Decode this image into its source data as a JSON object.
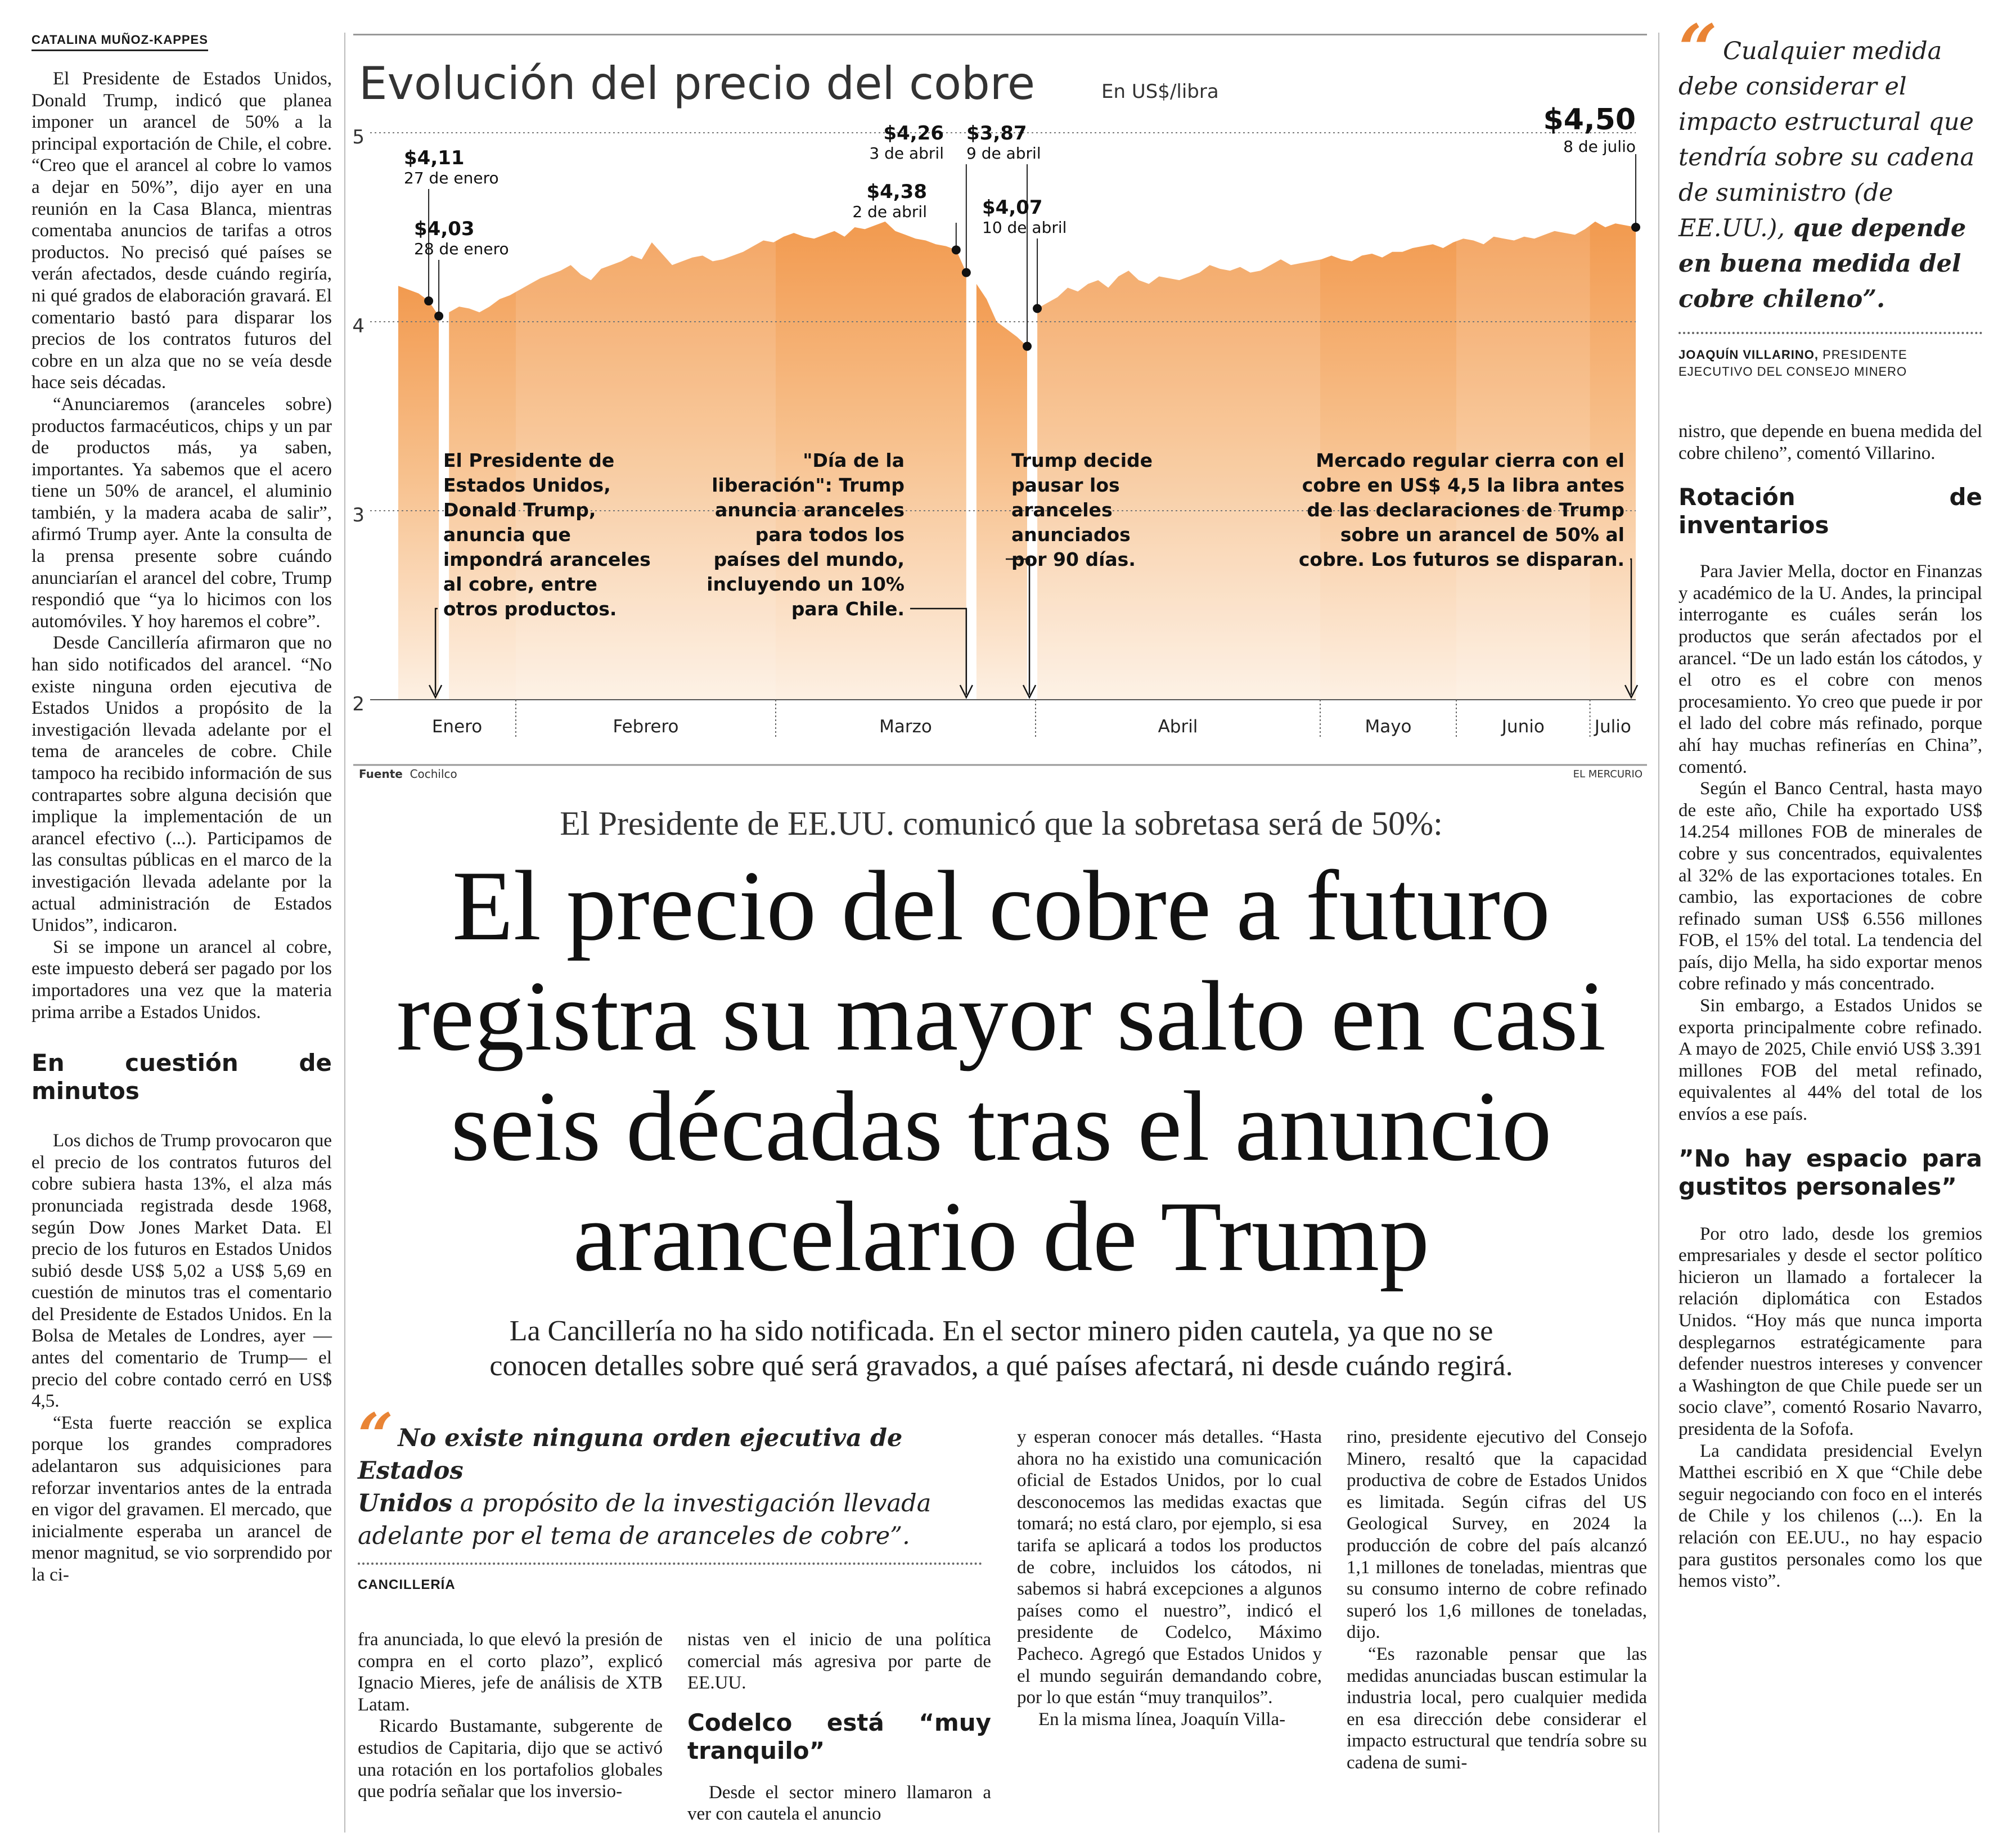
{
  "left": {
    "byline": "CATALINA MUÑOZ-KAPPES",
    "paragraphs": [
      "El Presidente de Estados Unidos, Donald Trump, indicó que planea imponer un arancel de 50% a la principal exportación de Chile, el cobre. “Creo que el arancel al cobre lo vamos a dejar en 50%”, dijo ayer en una reunión en la Casa Blanca, mientras comentaba anuncios de tarifas a otros productos. No precisó qué países se verán afectados, desde cuándo regiría, ni qué grados de elaboración gravará. El comentario bastó para disparar los precios de los contratos futuros del cobre en un alza que no se veía desde hace seis décadas.",
      "“Anunciaremos (aranceles sobre) productos farmacéuticos, chips y un par de productos más, ya saben, importantes. Ya sabemos que el acero tiene un 50% de arancel, el aluminio también, y la madera acaba de salir”, afirmó Trump ayer. Ante la consulta de la prensa presente sobre cuándo anunciarían el arancel del cobre, Trump respondió que “ya lo hicimos con los automóviles. Y hoy haremos el cobre”.",
      "Desde Cancillería afirmaron que no han sido notificados del arancel. “No existe ninguna orden ejecutiva de Estados Unidos a propósito de la investigación llevada adelante por el tema de aranceles de cobre. Chile tampoco ha recibido información de sus contrapartes sobre alguna decisión que implique la implementación de un arancel efectivo (...). Participamos de las consultas públicas en el marco de la investigación llevada adelante por la actual administración de Estados Unidos”, indicaron.",
      "Si se impone un arancel al cobre, este impuesto deberá ser pagado por los importadores una vez que la materia prima arribe a Estados Unidos."
    ],
    "subhead": "En cuestión de minutos",
    "paragraphs2": [
      "Los dichos de Trump provocaron que el precio de los contratos futuros del cobre subiera hasta 13%, el alza más pronunciada registrada desde 1968, según Dow Jones Market Data. El precio de los futuros en Estados Unidos subió desde US$ 5,02 a US$ 5,69 en cuestión de minutos tras el comentario del Presidente de Estados Unidos. En la Bolsa de Metales de Londres, ayer —antes del comentario de Trump— el precio del cobre contado cerró en US$ 4,5.",
      "“Esta fuerte reacción se explica porque los grandes compradores adelantaron sus adquisiciones para reforzar inventarios antes de la entrada en vigor del gravamen. El mercado, que inicialmente esperaba un arancel de menor magnitud, se vio sorprendido por la ci-"
    ]
  },
  "chart_data": {
    "type": "area",
    "title": "Evolución del precio del cobre",
    "unit_label": "En US$/libra",
    "ylim": [
      2,
      5
    ],
    "yticks": [
      "5",
      "4",
      "3",
      "2"
    ],
    "months": [
      "Enero",
      "Febrero",
      "Marzo",
      "Abril",
      "Mayo",
      "Junio",
      "Julio"
    ],
    "series": [
      {
        "values": [
          4.19,
          4.17,
          4.15,
          4.11,
          4.03,
          4.05,
          4.08,
          4.07,
          4.05,
          4.08,
          4.12,
          4.14,
          4.17,
          4.2,
          4.23,
          4.25,
          4.27,
          4.3,
          4.25,
          4.22,
          4.28,
          4.3,
          4.32,
          4.35,
          4.33,
          4.42,
          4.36,
          4.3,
          4.32,
          4.34,
          4.35,
          4.32,
          4.33,
          4.35,
          4.37,
          4.4,
          4.43,
          4.42,
          4.45,
          4.47,
          4.45,
          4.44,
          4.46,
          4.48,
          4.45,
          4.5,
          4.49,
          4.51,
          4.53,
          4.48,
          4.46,
          4.44,
          4.43,
          4.41,
          4.4,
          4.38,
          4.26,
          4.2,
          4.12,
          4.0,
          3.96,
          3.92,
          3.87,
          4.07,
          4.1,
          4.13,
          4.18,
          4.16,
          4.2,
          4.22,
          4.18,
          4.24,
          4.27,
          4.22,
          4.2,
          4.24,
          4.23,
          4.22,
          4.24,
          4.26,
          4.3,
          4.28,
          4.27,
          4.29,
          4.26,
          4.27,
          4.3,
          4.33,
          4.3,
          4.31,
          4.32,
          4.33,
          4.35,
          4.33,
          4.32,
          4.35,
          4.36,
          4.34,
          4.37,
          4.37,
          4.39,
          4.4,
          4.41,
          4.39,
          4.42,
          4.44,
          4.43,
          4.41,
          4.45,
          4.44,
          4.43,
          4.45,
          4.44,
          4.46,
          4.48,
          4.47,
          4.46,
          4.49,
          4.53,
          4.5,
          4.52,
          4.51,
          4.5
        ]
      }
    ],
    "annotations": [
      {
        "value": "$4,11",
        "date": "27 de enero"
      },
      {
        "value": "$4,03",
        "date": "28 de enero"
      },
      {
        "value": "$4,38",
        "date": "2 de abril"
      },
      {
        "value": "$4,26",
        "date": "3 de abril"
      },
      {
        "value": "$3,87",
        "date": "9 de abril"
      },
      {
        "value": "$4,07",
        "date": "10 de abril"
      },
      {
        "value": "$4,50",
        "date": "8 de julio"
      }
    ],
    "events": [
      [
        "El Presidente de",
        "Estados Unidos,",
        "Donald Trump,",
        "anuncia que",
        "impondrá aranceles",
        "al cobre, entre",
        "otros productos."
      ],
      [
        "\"Día de la",
        "liberación\": Trump",
        "anuncia aranceles",
        "para todos los",
        "países del mundo,",
        "incluyendo un 10%",
        "para Chile."
      ],
      [
        "Trump decide",
        "pausar los",
        "aranceles",
        "anunciados",
        "por 90 días."
      ],
      [
        "Mercado regular cierra con el",
        "cobre en US$ 4,5 la libra antes",
        "de las declaraciones de Trump",
        "sobre un arancel de 50% al",
        "cobre. Los futuros se disparan."
      ]
    ],
    "source_label": "Fuente",
    "source": "Cochilco",
    "credit": "EL MERCURIO"
  },
  "headline": {
    "kicker": "El Presidente de EE.UU. comunicó que la sobretasa será de 50%:",
    "lines": [
      "El precio del cobre a futuro",
      "registra su mayor salto en casi",
      "seis décadas tras el anuncio",
      "arancelario de Trump"
    ],
    "deck": [
      "La Cancillería no ha sido notificada. En el sector minero piden cautela, ya que no se",
      "conocen detalles sobre qué será gravados, a qué países afectará, ni desde cuándo regirá."
    ]
  },
  "quote_mid": {
    "lines": [
      {
        "bold": "No existe ninguna orden ejecutiva de Estados",
        "normal": ""
      },
      {
        "bold": "Unidos",
        "normal": " a propósito de la investigación llevada"
      },
      {
        "bold": "",
        "normal": "adelante por el tema de aranceles de cobre”."
      }
    ],
    "source": "CANCILLERÍA"
  },
  "col2": [
    "fra anunciada, lo que elevó la presión de compra en el corto plazo”, explicó Ignacio Mieres, jefe de análisis de XTB Latam.",
    "Ricardo Bustamante, subgerente de estudios de Capitaria, dijo que se activó una rotación en los portafolios globales que podría señalar que los inversio-"
  ],
  "col3": {
    "paragraphs": [
      "nistas ven el inicio de una política comercial más agresiva por parte de EE.UU."
    ],
    "subhead": "Codelco está “muy tranquilo”",
    "paragraphs2": [
      "Desde el sector minero llamaron a ver con cautela el anuncio"
    ]
  },
  "col4": [
    "y esperan conocer más detalles. “Hasta ahora no ha existido una comunicación oficial de Estados Unidos, por lo cual desconocemos las medidas exactas que tomará; no está claro, por ejemplo, si esa tarifa se aplicará a todos los productos de cobre, incluidos los cátodos, ni sabemos si habrá excepciones a algunos países como el nuestro”, indicó el presidente de Codelco, Máximo Pacheco. Agregó que Estados Unidos y el mundo seguirán demandando cobre, por lo que están “muy tranquilos”.",
    "En la misma línea, Joaquín Villa-"
  ],
  "col5": [
    "rino, presidente ejecutivo del Consejo Minero, resaltó que la capacidad productiva de cobre de Estados Unidos es limitada. Según cifras del US Geological Survey, en 2024 la producción de cobre del país alcanzó 1,1 millones de toneladas, mientras que su consumo interno de cobre refinado superó los 1,6 millones de toneladas, dijo.",
    "“Es razonable pensar que las medidas anunciadas buscan estimular la industria local, pero cualquier medida en esa dirección debe considerar el impacto estructural que tendría sobre su cadena de sumi-"
  ],
  "right": {
    "quote": {
      "italic": "Cualquier medida debe considerar el impacto estructural que tendría sobre su cadena de suministro (de EE.UU.),",
      "bold": " que depende en buena medida del cobre chileno”.",
      "source_name": "JOAQUÍN VILLARINO,",
      "source_role": " PRESIDENTE EJECUTIVO DEL CONSEJO MINERO"
    },
    "intro": "nistro, que depende en buena medida del cobre chileno”, comentó Villarino.",
    "subhead1": "Rotación de inventarios",
    "paragraphs1": [
      "Para Javier Mella, doctor en Finanzas y académico de la U. Andes, la principal interrogante es cuáles serán los productos que serán afectados por el arancel. “De un lado están los cátodos, y el otro es el cobre con menos procesamiento. Yo creo que puede ir por el lado del cobre más refinado, porque ahí hay muchas refinerías en China”, comentó.",
      "Según el Banco Central, hasta mayo de este año, Chile ha exportado US$ 14.254 millones FOB de minerales de cobre y sus concentrados, equivalentes al 32% de las exportaciones totales. En cambio, las exportaciones de cobre refinado suman US$ 6.556 millones FOB, el 15% del total. La tendencia del país, dijo Mella, ha sido exportar menos cobre refinado y más concentrado.",
      "Sin embargo, a Estados Unidos se exporta principalmente cobre refinado. A mayo de 2025, Chile envió US$ 3.391 millones FOB del metal refinado, equivalentes al 44% del total de los envíos a ese país."
    ],
    "subhead2": "”No hay espacio para gustitos personales”",
    "paragraphs2": [
      "Por otro lado, desde los gremios empresariales y desde el sector político hicieron un llamado a fortalecer la relación diplomática con Estados Unidos. “Hoy más que nunca importa desplegarnos estratégicamente para defender nuestros intereses y convencer a Washington de que Chile puede ser un socio clave”, comentó Rosario Navarro, presidenta de la Sofofa.",
      "La candidata presidencial Evelyn Matthei escribió en X que “Chile debe seguir negociando con foco en el interés de Chile y los chilenos (...). En la relación con EE.UU., no hay espacio para gustitos personales como los que hemos visto”."
    ]
  }
}
